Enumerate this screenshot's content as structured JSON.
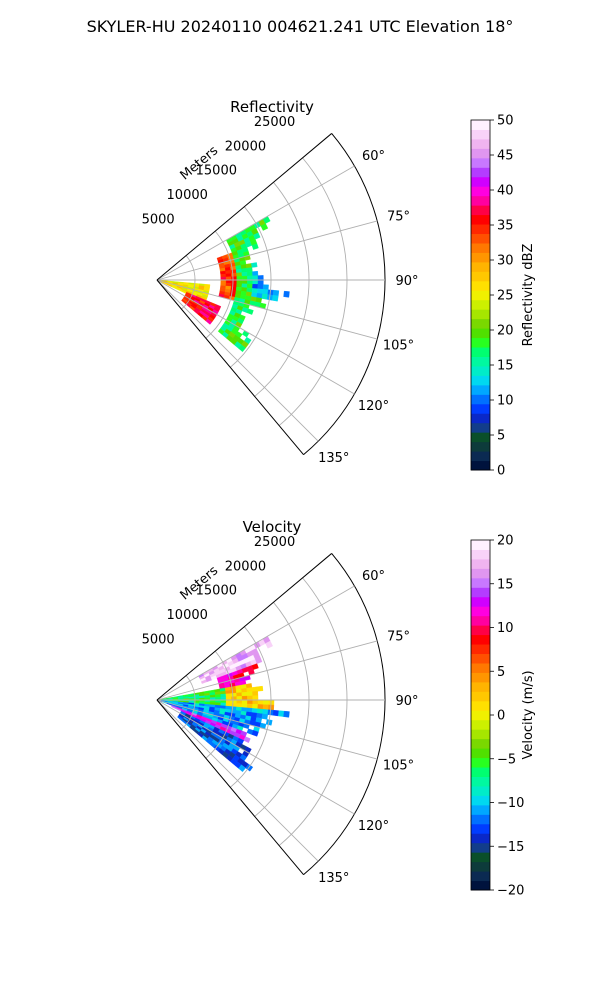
{
  "figure": {
    "suptitle": "SKYLER-HU  20240110  004621.241 UTC Elevation 18°"
  },
  "chart_data": [
    {
      "type": "heatmap",
      "subtype": "radar-ppi-sector",
      "title": "Reflectivity",
      "range_label": "Meters",
      "radial_ticks": [
        5000,
        10000,
        15000,
        20000,
        25000
      ],
      "radial_tick_labels": [
        "5000",
        "10000",
        "15000",
        "20000",
        "25000"
      ],
      "range_limit": 30000,
      "azimuth_range_deg": [
        50,
        140
      ],
      "azimuth_ticks_deg": [
        60,
        75,
        90,
        105,
        120,
        135
      ],
      "azimuth_tick_labels": [
        "60°",
        "75°",
        "90°",
        "105°",
        "120°",
        "135°"
      ],
      "grid": true,
      "colorbar": {
        "label": "Reflectivity dBZ",
        "vmin": 0,
        "vmax": 50,
        "ticks": [
          0,
          5,
          10,
          15,
          20,
          25,
          30,
          35,
          40,
          45,
          50
        ],
        "tick_labels": [
          "0",
          "5",
          "10",
          "15",
          "20",
          "25",
          "30",
          "35",
          "40",
          "45",
          "50"
        ],
        "colors": [
          "#00133d",
          "#0b2a52",
          "#0d3b3b",
          "#0a4f2a",
          "#123d8a",
          "#0a28c8",
          "#003cff",
          "#0070ff",
          "#00a8ff",
          "#00d8f0",
          "#00ecc8",
          "#00f8a0",
          "#00ff70",
          "#28ff20",
          "#50e000",
          "#7ad800",
          "#a6e600",
          "#ccf000",
          "#f0f000",
          "#ffe000",
          "#ffc800",
          "#ffb400",
          "#ff9600",
          "#ff7800",
          "#ff5000",
          "#ff2800",
          "#ff0000",
          "#ff0046",
          "#ff00a0",
          "#ff00e0",
          "#d000ff",
          "#b43cff",
          "#c878ff",
          "#e096f0",
          "#f0b4f0",
          "#f8d2f8",
          "#fff0ff"
        ]
      },
      "data_summary": {
        "data_extent_m": 17000,
        "data_azimuth_deg": [
          60,
          130
        ],
        "series": [
          {
            "feature": "near-range low-angle",
            "azimuth_deg": [
              95,
              115
            ],
            "range_m": [
              0,
              7000
            ],
            "value_dbz": 26
          },
          {
            "feature": "band",
            "azimuth_deg": [
              112,
              130
            ],
            "range_m": [
              4000,
              9000
            ],
            "value_dbz": 36
          },
          {
            "feature": "arc",
            "azimuth_deg": [
              70,
              105
            ],
            "range_m": [
              8000,
              10000
            ],
            "value_dbz": 34
          },
          {
            "feature": "outer",
            "azimuth_deg": [
              60,
              130
            ],
            "range_m": [
              10000,
              17000
            ],
            "value_dbz": 18
          },
          {
            "feature": "east",
            "azimuth_deg": [
              80,
              100
            ],
            "range_m": [
              12000,
              17000
            ],
            "value_dbz": 12
          }
        ]
      }
    },
    {
      "type": "heatmap",
      "subtype": "radar-ppi-sector",
      "title": "Velocity",
      "range_label": "Meters",
      "radial_ticks": [
        5000,
        10000,
        15000,
        20000,
        25000
      ],
      "radial_tick_labels": [
        "5000",
        "10000",
        "15000",
        "20000",
        "25000"
      ],
      "range_limit": 30000,
      "azimuth_range_deg": [
        50,
        140
      ],
      "azimuth_ticks_deg": [
        60,
        75,
        90,
        105,
        120,
        135
      ],
      "azimuth_tick_labels": [
        "60°",
        "75°",
        "90°",
        "105°",
        "120°",
        "135°"
      ],
      "grid": true,
      "colorbar": {
        "label": "Velocity (m/s)",
        "vmin": -20,
        "vmax": 20,
        "ticks": [
          -20,
          -15,
          -10,
          -5,
          0,
          5,
          10,
          15,
          20
        ],
        "tick_labels": [
          "−20",
          "−15",
          "−10",
          "−5",
          "0",
          "5",
          "10",
          "15",
          "20"
        ],
        "colors": [
          "#00133d",
          "#0b2a52",
          "#0d3b3b",
          "#0a4f2a",
          "#123d8a",
          "#0a28c8",
          "#003cff",
          "#0070ff",
          "#00a8ff",
          "#00d8f0",
          "#00ecc8",
          "#00f8a0",
          "#00ff70",
          "#28ff20",
          "#50e000",
          "#7ad800",
          "#a6e600",
          "#ccf000",
          "#f0f000",
          "#ffe000",
          "#ffc800",
          "#ffb400",
          "#ff9600",
          "#ff7800",
          "#ff5000",
          "#ff2800",
          "#ff0000",
          "#ff0046",
          "#ff00a0",
          "#ff00e0",
          "#d000ff",
          "#b43cff",
          "#c878ff",
          "#e096f0",
          "#f0b4f0",
          "#f8d2f8",
          "#fff0ff"
        ]
      },
      "data_summary": {
        "data_extent_m": 17000,
        "data_azimuth_deg": [
          60,
          130
        ],
        "series": [
          {
            "feature": "north edge",
            "azimuth_deg": [
              60,
              70
            ],
            "range_m": [
              6000,
              17000
            ],
            "value_ms": 18
          },
          {
            "feature": "north outer",
            "azimuth_deg": [
              70,
              80
            ],
            "range_m": [
              8000,
              16000
            ],
            "value_ms": 11
          },
          {
            "feature": "central outer",
            "azimuth_deg": [
              80,
              95
            ],
            "range_m": [
              9000,
              16000
            ],
            "value_ms": 2
          },
          {
            "feature": "central near",
            "azimuth_deg": [
              80,
              95
            ],
            "range_m": [
              0,
              9000
            ],
            "value_ms": -6
          },
          {
            "feature": "southern core",
            "azimuth_deg": [
              95,
              110
            ],
            "range_m": [
              0,
              17000
            ],
            "value_ms": -11
          },
          {
            "feature": "southern streak",
            "azimuth_deg": [
              108,
              115
            ],
            "range_m": [
              2000,
              14000
            ],
            "value_ms": 13
          },
          {
            "feature": "south edge",
            "azimuth_deg": [
              115,
              130
            ],
            "range_m": [
              3000,
              15000
            ],
            "value_ms": -13
          }
        ]
      }
    }
  ]
}
